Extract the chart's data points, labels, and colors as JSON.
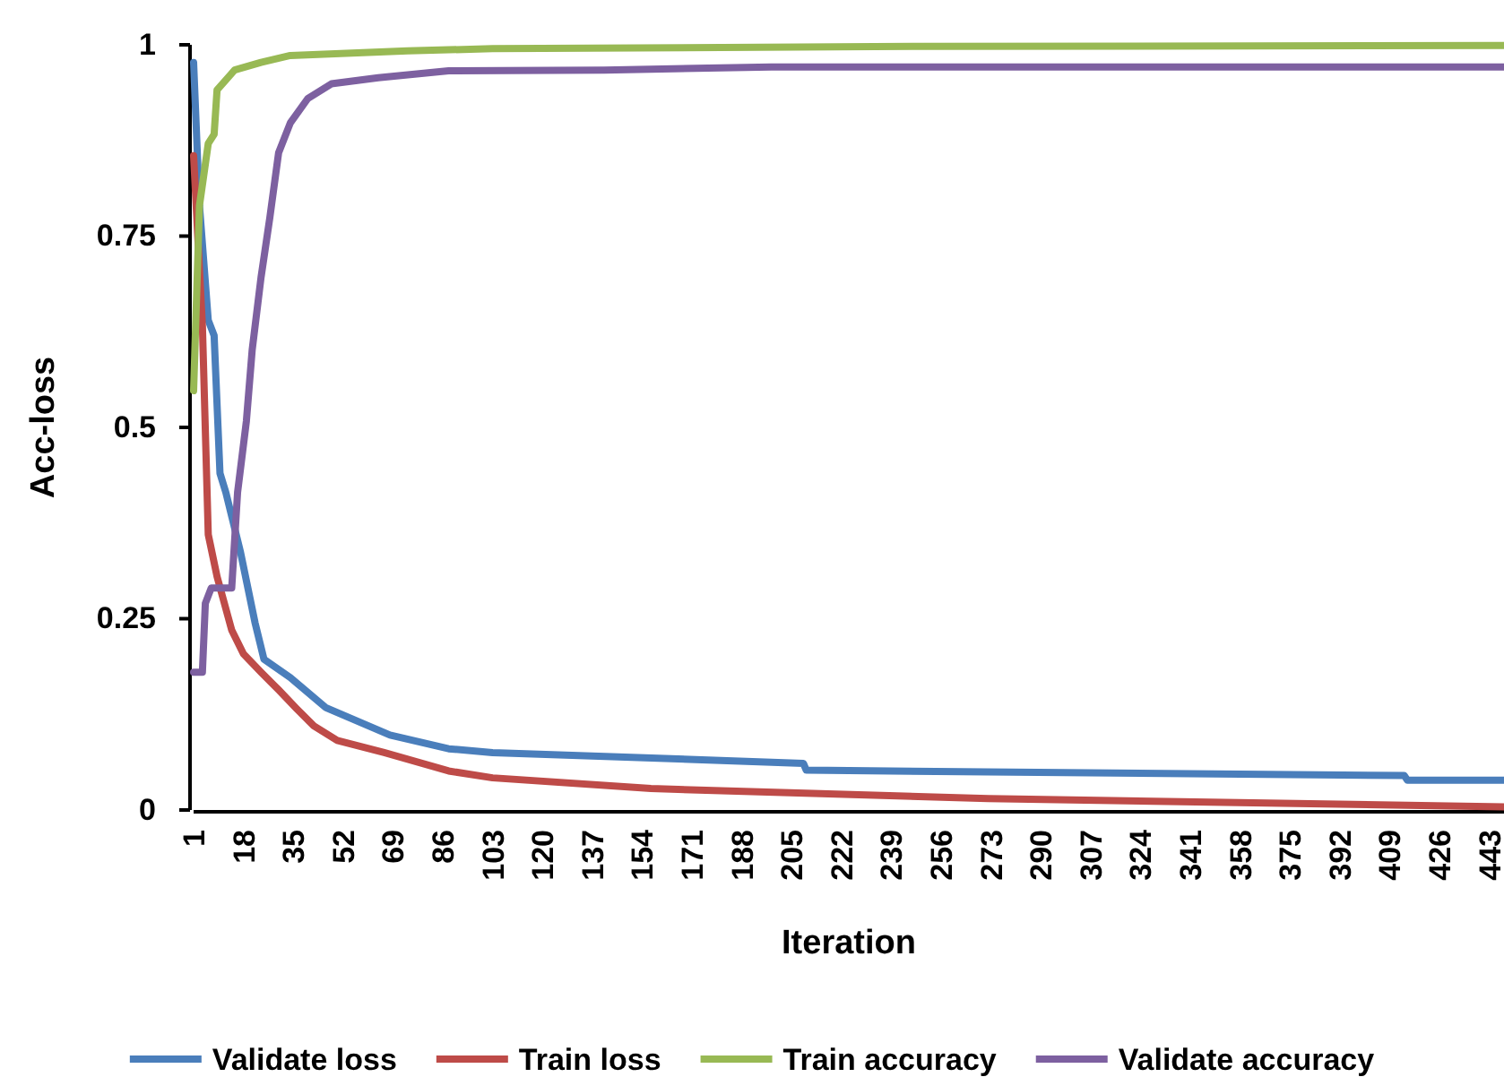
{
  "chart_data": {
    "type": "line",
    "xlabel": "Iteration",
    "ylabel": "Acc-loss",
    "xlim": [
      1,
      448
    ],
    "xticks": [
      1,
      18,
      35,
      52,
      69,
      86,
      103,
      120,
      137,
      154,
      171,
      188,
      205,
      222,
      239,
      256,
      273,
      290,
      307,
      324,
      341,
      358,
      375,
      392,
      409,
      426,
      443
    ],
    "ylim": [
      0,
      1
    ],
    "yticks": [
      0,
      0.25,
      0.5,
      0.75,
      1
    ],
    "grid": false,
    "legend": "bottom",
    "marker": "none",
    "line_style": "solid",
    "series": [
      {
        "name": "Validate loss",
        "color": "#4a7ebb",
        "x": [
          1,
          3,
          6,
          8,
          10,
          12,
          17,
          22,
          25,
          34,
          46,
          68,
          88,
          103,
          209,
          210,
          414,
          415,
          448
        ],
        "values": [
          0.977,
          0.79,
          0.64,
          0.62,
          0.44,
          0.415,
          0.337,
          0.244,
          0.197,
          0.173,
          0.134,
          0.098,
          0.08,
          0.075,
          0.061,
          0.052,
          0.045,
          0.039,
          0.039
        ]
      },
      {
        "name": "Train loss",
        "color": "#be4b48",
        "x": [
          1,
          4,
          6,
          9,
          14,
          18,
          24,
          30,
          36,
          42,
          50,
          66,
          88,
          103,
          157,
          272,
          448
        ],
        "values": [
          0.855,
          0.633,
          0.36,
          0.305,
          0.235,
          0.204,
          0.18,
          0.157,
          0.133,
          0.11,
          0.091,
          0.075,
          0.051,
          0.042,
          0.028,
          0.015,
          0.004
        ]
      },
      {
        "name": "Train accuracy",
        "color": "#98b954",
        "x": [
          1,
          3,
          6,
          8,
          9,
          15,
          24,
          34,
          74,
          103,
          250,
          448
        ],
        "values": [
          0.548,
          0.79,
          0.871,
          0.883,
          0.941,
          0.967,
          0.977,
          0.986,
          0.992,
          0.995,
          0.998,
          0.999
        ]
      },
      {
        "name": "Validate accuracy",
        "color": "#7d60a0",
        "x": [
          1,
          4,
          5,
          7,
          14,
          16,
          19,
          21,
          24,
          27,
          30,
          34,
          40,
          48,
          64,
          88,
          141,
          198,
          448
        ],
        "values": [
          0.18,
          0.18,
          0.27,
          0.29,
          0.29,
          0.415,
          0.508,
          0.602,
          0.696,
          0.774,
          0.859,
          0.898,
          0.93,
          0.949,
          0.957,
          0.966,
          0.967,
          0.971,
          0.971
        ]
      }
    ]
  }
}
